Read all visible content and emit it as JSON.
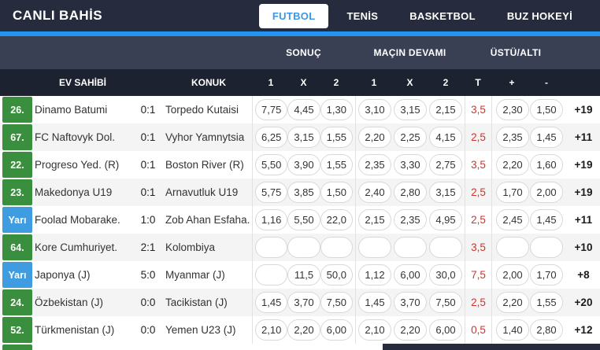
{
  "header": {
    "title": "CANLI BAHİS",
    "tabs": [
      {
        "label": "FUTBOL",
        "active": true
      },
      {
        "label": "TENİS",
        "active": false
      },
      {
        "label": "BASKETBOL",
        "active": false
      },
      {
        "label": "BUZ HOKEYİ",
        "active": false
      }
    ]
  },
  "table": {
    "group_headers": {
      "result": "SONUÇ",
      "rest_of_match": "MAÇIN DEVAMI",
      "over_under": "ÜSTÜ/ALTI"
    },
    "column_headers": {
      "home": "EV SAHİBİ",
      "away": "KONUK",
      "result": [
        "1",
        "X",
        "2"
      ],
      "rest_of_match": [
        "1",
        "X",
        "2"
      ],
      "total": "T",
      "over": "+",
      "under": "-"
    },
    "rows": [
      {
        "minute": "26.",
        "minute_type": "live",
        "home": "Dinamo Batumi",
        "score": "0:1",
        "away": "Torpedo Kutaisi",
        "sonuc": [
          "7,75",
          "4,45",
          "1,30"
        ],
        "devami": [
          "3,10",
          "3,15",
          "2,15"
        ],
        "total": "3,5",
        "over": "2,30",
        "under": "1,50",
        "more": "+19"
      },
      {
        "minute": "67.",
        "minute_type": "live",
        "home": "FC Naftovyk Dol.",
        "score": "0:1",
        "away": "Vyhor Yamnytsia",
        "sonuc": [
          "6,25",
          "3,15",
          "1,55"
        ],
        "devami": [
          "2,20",
          "2,25",
          "4,15"
        ],
        "total": "2,5",
        "over": "2,35",
        "under": "1,45",
        "more": "+11"
      },
      {
        "minute": "22.",
        "minute_type": "live",
        "home": "Progreso Yed. (R)",
        "score": "0:1",
        "away": "Boston River (R)",
        "sonuc": [
          "5,50",
          "3,90",
          "1,55"
        ],
        "devami": [
          "2,35",
          "3,30",
          "2,75"
        ],
        "total": "3,5",
        "over": "2,20",
        "under": "1,60",
        "more": "+19"
      },
      {
        "minute": "23.",
        "minute_type": "live",
        "home": "Makedonya U19",
        "score": "0:1",
        "away": "Arnavutluk U19",
        "sonuc": [
          "5,75",
          "3,85",
          "1,50"
        ],
        "devami": [
          "2,40",
          "2,80",
          "3,15"
        ],
        "total": "2,5",
        "over": "1,70",
        "under": "2,00",
        "more": "+19"
      },
      {
        "minute": "Yarı",
        "minute_type": "half",
        "home": "Foolad Mobarake.",
        "score": "1:0",
        "away": "Zob Ahan Esfaha.",
        "sonuc": [
          "1,16",
          "5,50",
          "22,0"
        ],
        "devami": [
          "2,15",
          "2,35",
          "4,95"
        ],
        "total": "2,5",
        "over": "2,45",
        "under": "1,45",
        "more": "+11"
      },
      {
        "minute": "64.",
        "minute_type": "live",
        "home": "Kore Cumhuriyet.",
        "score": "2:1",
        "away": "Kolombiya",
        "sonuc": [
          "",
          "",
          ""
        ],
        "devami": [
          "",
          "",
          ""
        ],
        "total": "3,5",
        "over": "",
        "under": "",
        "more": "+10"
      },
      {
        "minute": "Yarı",
        "minute_type": "half",
        "home": "Japonya (J)",
        "score": "5:0",
        "away": "Myanmar (J)",
        "sonuc": [
          "",
          "11,5",
          "50,0"
        ],
        "devami": [
          "1,12",
          "6,00",
          "30,0"
        ],
        "total": "7,5",
        "over": "2,00",
        "under": "1,70",
        "more": "+8"
      },
      {
        "minute": "24.",
        "minute_type": "live",
        "home": "Özbekistan (J)",
        "score": "0:0",
        "away": "Tacikistan (J)",
        "sonuc": [
          "1,45",
          "3,70",
          "7,50"
        ],
        "devami": [
          "1,45",
          "3,70",
          "7,50"
        ],
        "total": "2,5",
        "over": "2,20",
        "under": "1,55",
        "more": "+20"
      },
      {
        "minute": "52.",
        "minute_type": "live",
        "home": "Türkmenistan (J)",
        "score": "0:0",
        "away": "Yemen U23 (J)",
        "sonuc": [
          "2,10",
          "2,20",
          "6,00"
        ],
        "devami": [
          "2,10",
          "2,20",
          "6,00"
        ],
        "total": "0,5",
        "over": "1,40",
        "under": "2,80",
        "more": "+12"
      }
    ]
  },
  "colors": {
    "topbar_bg": "#262c3d",
    "accent_blue": "#2395f3",
    "active_tab_text": "#3b97ea",
    "live_minute_green": "#3a8f3e",
    "half_minute_blue": "#3f9ce0",
    "total_red": "#d0342c",
    "group_header_bg": "#3a4054",
    "column_header_bg": "#1d2230",
    "alt_row_bg": "#f4f4f4"
  }
}
